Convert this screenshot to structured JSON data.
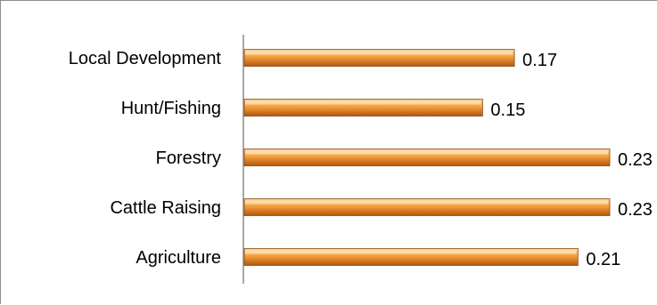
{
  "chart_data": {
    "type": "bar",
    "orientation": "horizontal",
    "categories": [
      "Local Development",
      "Hunt/Fishing",
      "Forestry",
      "Cattle Raising",
      "Agriculture"
    ],
    "values": [
      0.17,
      0.15,
      0.23,
      0.23,
      0.21
    ],
    "data_labels": [
      "0.17",
      "0.15",
      "0.23",
      "0.23",
      "0.21"
    ],
    "title": "",
    "xlabel": "",
    "ylabel": "",
    "xlim": [
      0,
      0.23
    ],
    "grid": false,
    "legend": "none",
    "colors": {
      "bar_top": "#fbd7a0",
      "bar_mid": "#f59d3a",
      "bar_bottom": "#b2570f",
      "bar_edge": "#8a4a12",
      "axis": "#8c8c8c",
      "text": "#000000"
    }
  }
}
